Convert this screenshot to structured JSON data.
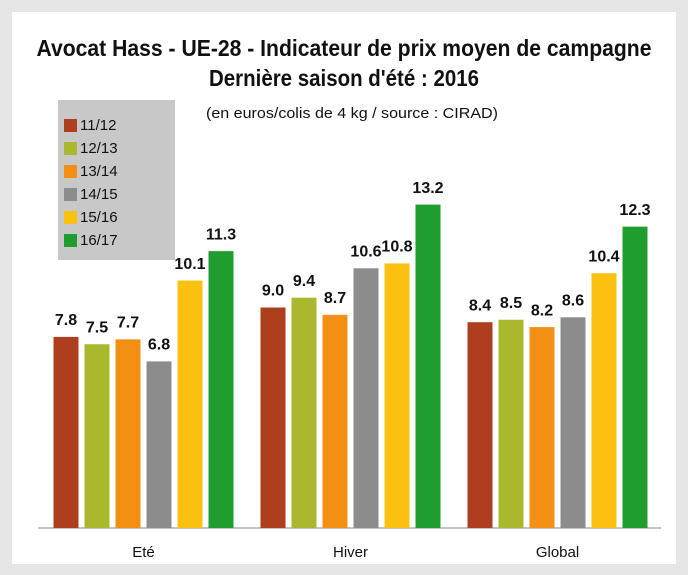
{
  "chart_data": {
    "type": "bar",
    "title": "Avocat Hass - UE-28 - Indicateur de prix moyen de campagne",
    "subtitle": "Dernière saison d'été : 2016",
    "note": "(en euros/colis de 4 kg / source : CIRAD)",
    "categories": [
      "Eté",
      "Hiver",
      "Global"
    ],
    "series": [
      {
        "name": "11/12",
        "color": "#ad3f1f",
        "values": [
          7.8,
          9.0,
          8.4
        ],
        "value_labels": [
          "7.8",
          "9.0",
          "8.4"
        ]
      },
      {
        "name": "12/13",
        "color": "#a9b82c",
        "values": [
          7.5,
          9.4,
          8.5
        ],
        "value_labels": [
          "7.5",
          "9.4",
          "8.5"
        ]
      },
      {
        "name": "13/14",
        "color": "#f39014",
        "values": [
          7.7,
          8.7,
          8.2
        ],
        "value_labels": [
          "7.7",
          "8.7",
          "8.2"
        ]
      },
      {
        "name": "14/15",
        "color": "#8c8c8c",
        "values": [
          6.8,
          10.6,
          8.6
        ],
        "value_labels": [
          "6.8",
          "10.6",
          "8.6"
        ]
      },
      {
        "name": "15/16",
        "color": "#fcc010",
        "values": [
          10.1,
          10.8,
          10.4
        ],
        "value_labels": [
          "10.1",
          "10.8",
          "10.4"
        ]
      },
      {
        "name": "16/17",
        "color": "#1f9e2f",
        "values": [
          11.3,
          13.2,
          12.3
        ],
        "value_labels": [
          "11.3",
          "13.2",
          "12.3"
        ]
      }
    ],
    "ylim": [
      0,
      14
    ],
    "legend": "upper left"
  }
}
